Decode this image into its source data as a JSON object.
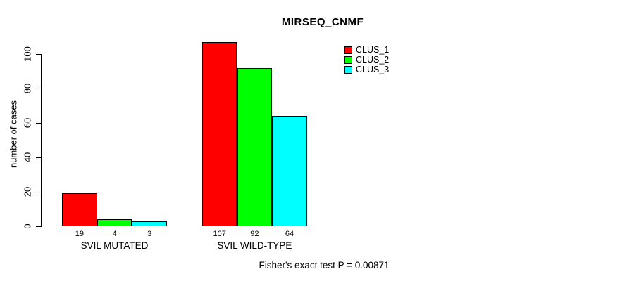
{
  "chart_data": {
    "type": "bar",
    "title": "MIRSEQ_CNMF",
    "xlabel": "",
    "ylabel": "number of cases",
    "categories": [
      "SVIL MUTATED",
      "SVIL WILD-TYPE"
    ],
    "series": [
      {
        "name": "CLUS_1",
        "color": "#ff0000",
        "values": [
          19,
          107
        ]
      },
      {
        "name": "CLUS_2",
        "color": "#00ff00",
        "values": [
          4,
          92
        ]
      },
      {
        "name": "CLUS_3",
        "color": "#00ffff",
        "values": [
          3,
          64
        ]
      }
    ],
    "bar_value_labels": [
      [
        "19",
        "4",
        "3"
      ],
      [
        "107",
        "92",
        "64"
      ]
    ],
    "yticks": [
      0,
      20,
      40,
      60,
      80,
      100
    ],
    "ylim": [
      0,
      107
    ],
    "grid": false,
    "legend_position": "top-right",
    "annotation": "Fisher's exact test P = 0.00871"
  },
  "colors": {
    "axis": "#000000",
    "background": "#ffffff",
    "bar_border": "#000000"
  }
}
